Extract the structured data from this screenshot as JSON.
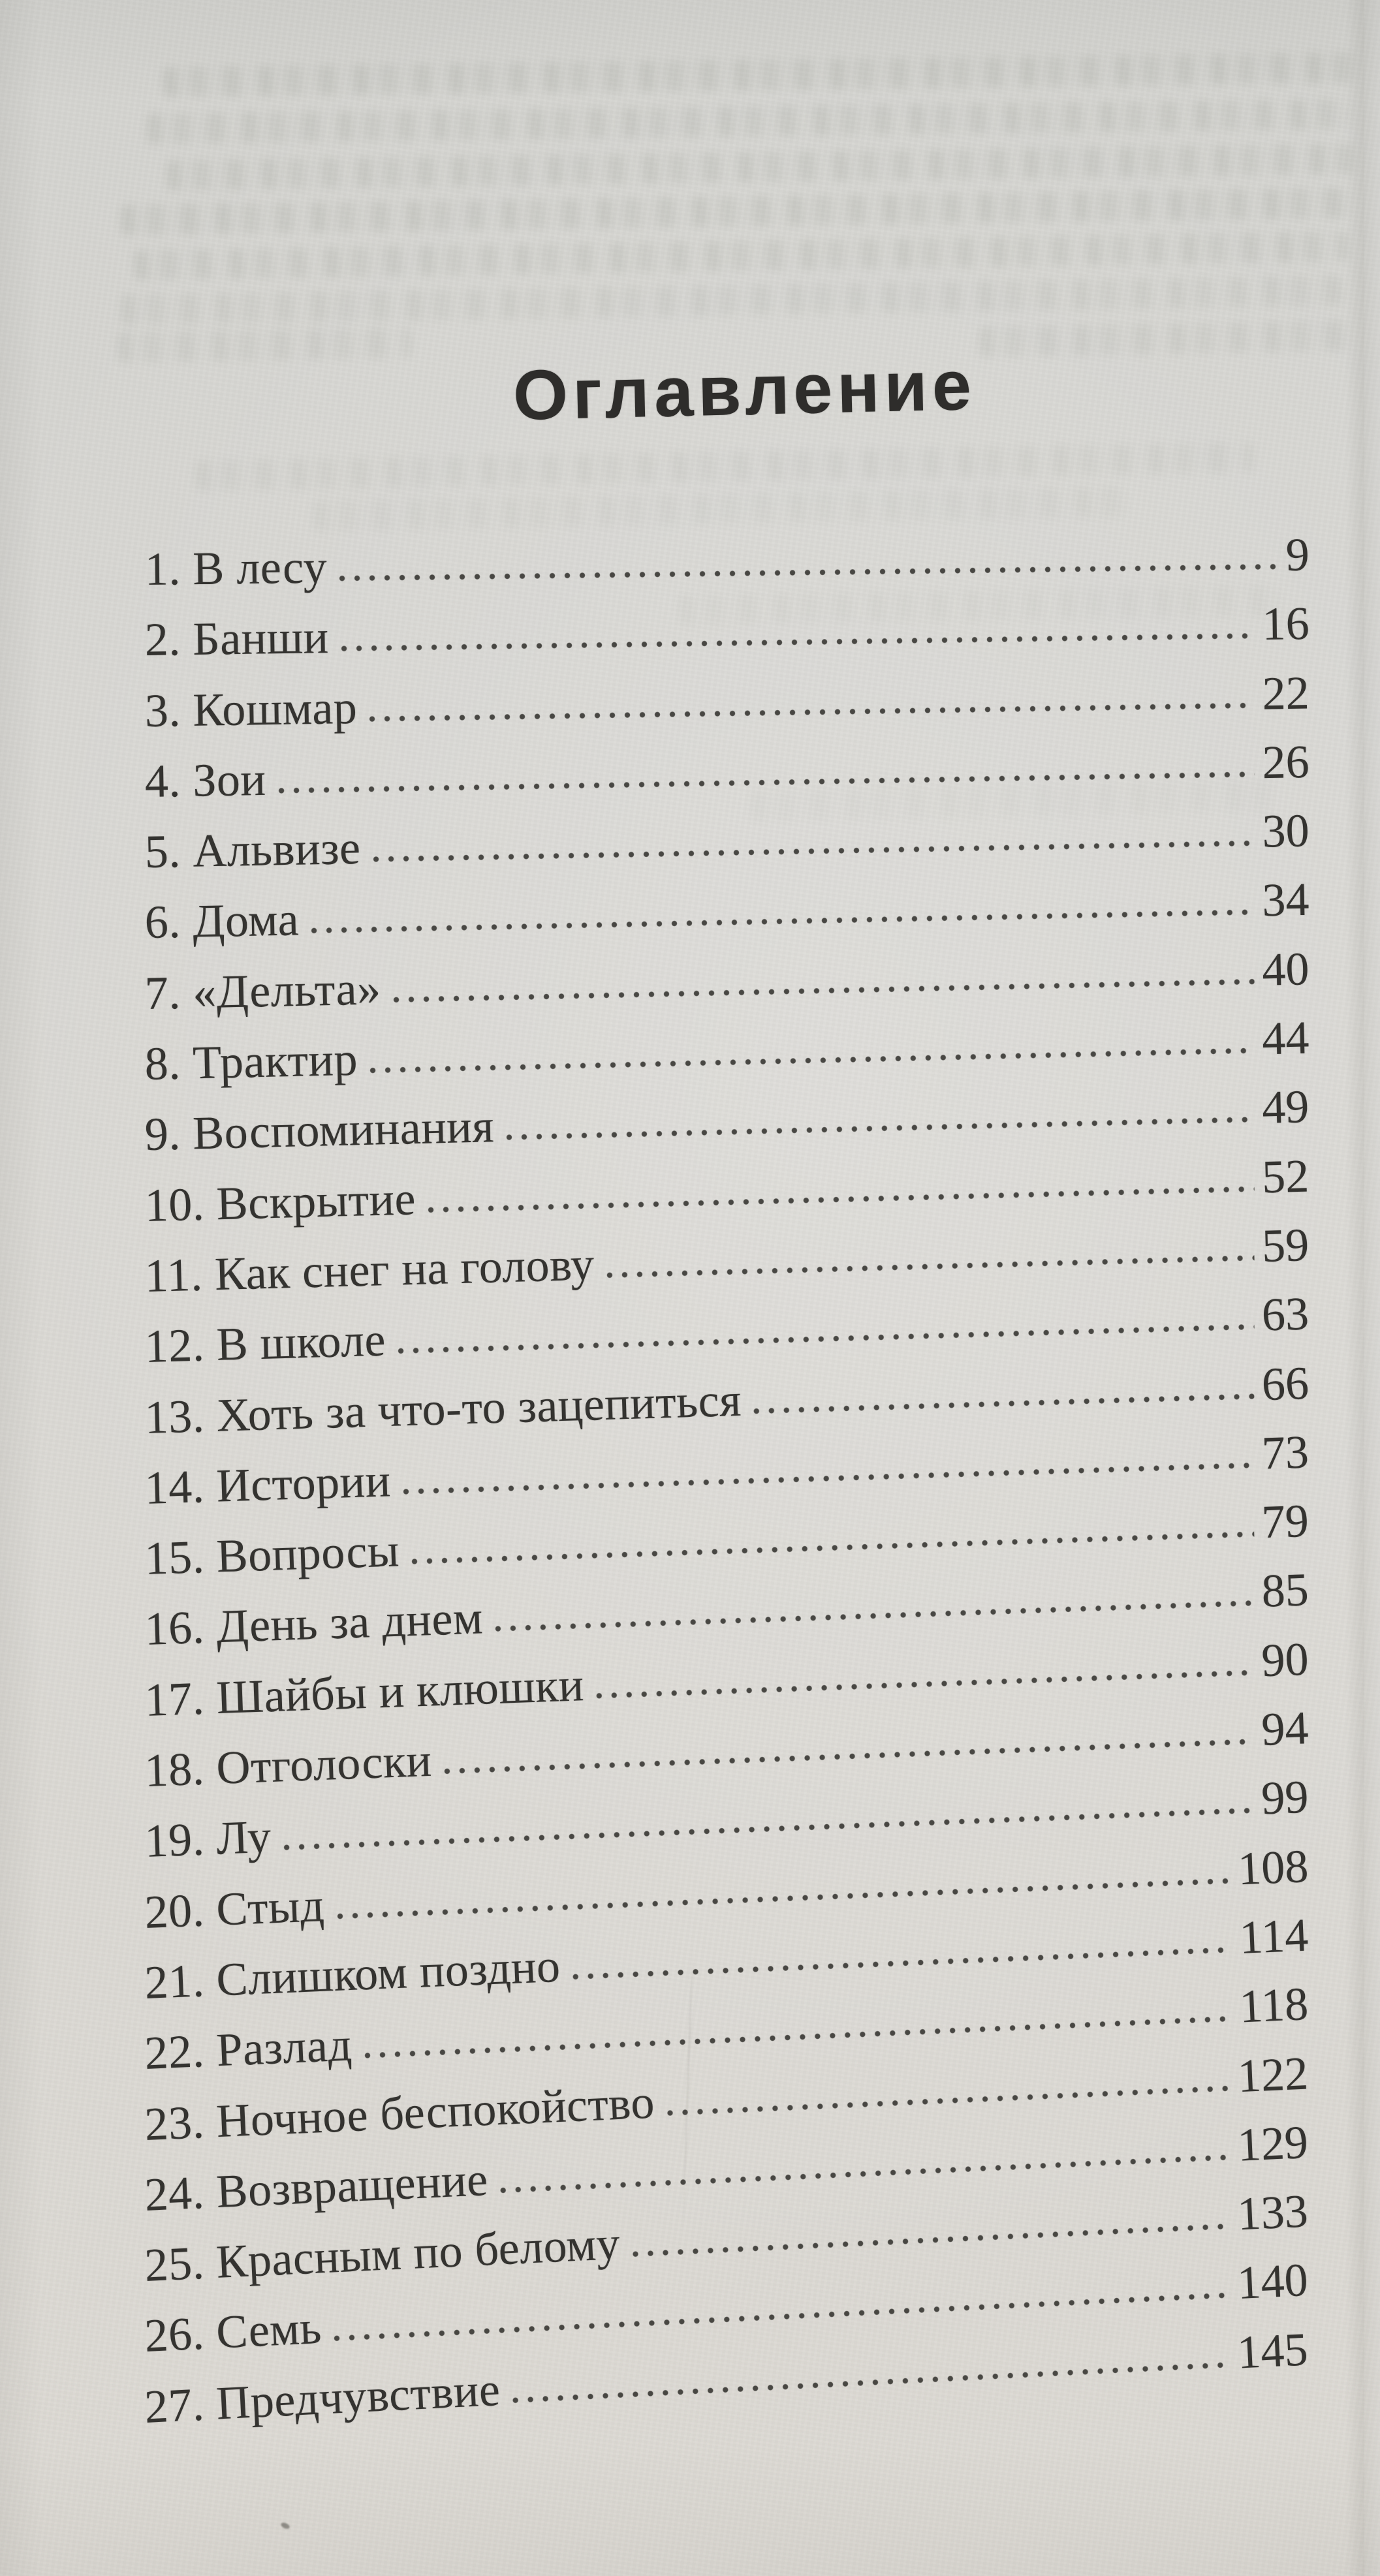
{
  "page": {
    "title": "Оглавление",
    "ink_color": "#343330",
    "paper_color": "#d7d6d2",
    "entries": [
      {
        "num": "1",
        "title": "В лесу",
        "page": "9"
      },
      {
        "num": "2",
        "title": "Банши",
        "page": "16"
      },
      {
        "num": "3",
        "title": "Кошмар",
        "page": "22"
      },
      {
        "num": "4",
        "title": "Зои",
        "page": "26"
      },
      {
        "num": "5",
        "title": "Альвизе",
        "page": "30"
      },
      {
        "num": "6",
        "title": "Дома",
        "page": "34"
      },
      {
        "num": "7",
        "title": "«Дельта»",
        "page": "40"
      },
      {
        "num": "8",
        "title": "Трактир",
        "page": "44"
      },
      {
        "num": "9",
        "title": "Воспоминания",
        "page": "49"
      },
      {
        "num": "10",
        "title": "Вскрытие",
        "page": "52"
      },
      {
        "num": "11",
        "title": "Как снег на голову",
        "page": "59"
      },
      {
        "num": "12",
        "title": "В школе",
        "page": "63"
      },
      {
        "num": "13",
        "title": "Хоть за что-то зацепиться",
        "page": "66"
      },
      {
        "num": "14",
        "title": "Истории",
        "page": "73"
      },
      {
        "num": "15",
        "title": "Вопросы",
        "page": "79"
      },
      {
        "num": "16",
        "title": "День за днем",
        "page": "85"
      },
      {
        "num": "17",
        "title": "Шайбы и клюшки",
        "page": "90"
      },
      {
        "num": "18",
        "title": "Отголоски",
        "page": "94"
      },
      {
        "num": "19",
        "title": "Лу",
        "page": "99"
      },
      {
        "num": "20",
        "title": "Стыд",
        "page": "108"
      },
      {
        "num": "21",
        "title": "Слишком поздно",
        "page": "114"
      },
      {
        "num": "22",
        "title": "Разлад",
        "page": "118"
      },
      {
        "num": "23",
        "title": "Ночное беспокойство",
        "page": "122"
      },
      {
        "num": "24",
        "title": "Возвращение",
        "page": "129"
      },
      {
        "num": "25",
        "title": "Красным по белому",
        "page": "133"
      },
      {
        "num": "26",
        "title": "Семь",
        "page": "140"
      },
      {
        "num": "27",
        "title": "Предчувствие",
        "page": "145"
      }
    ]
  }
}
